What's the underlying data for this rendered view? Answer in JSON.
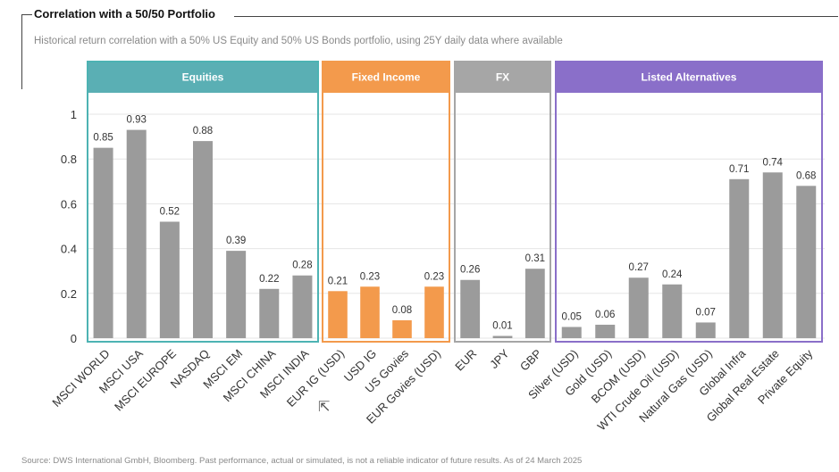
{
  "header": {
    "title": "Correlation with a 50/50 Portfolio",
    "subtitle": "Historical return correlation with a 50% US Equity and 50% US Bonds portfolio, using 25Y daily data where available"
  },
  "footer": {
    "source": "Source: DWS International GmbH, Bloomberg. Past performance, actual or simulated, is not a reliable indicator of future results. As of 24 March 2025"
  },
  "chart_data": {
    "type": "bar",
    "title": "",
    "xlabel": "",
    "ylabel": "",
    "ylim": [
      0,
      1
    ],
    "yticks": [
      "0",
      "0.2",
      "0.4",
      "0.6",
      "0.8",
      "1"
    ],
    "grid": true,
    "groups": [
      {
        "name": "Equities",
        "color": "#5aafb4",
        "border": "#4db3b3",
        "categories": [
          "MSCI WORLD",
          "MSCI USA",
          "MSCI EUROPE",
          "NASDAQ",
          "MSCI EM",
          "MSCI CHINA",
          "MSCI INDIA"
        ],
        "values": [
          0.85,
          0.93,
          0.52,
          0.88,
          0.39,
          0.22,
          0.28
        ],
        "labels": [
          "0.85",
          "0.93",
          "0.52",
          "0.88",
          "0.39",
          "0.22",
          "0.28"
        ],
        "bar_color": "#9b9b9b"
      },
      {
        "name": "Fixed Income",
        "color": "#f39a4c",
        "border": "#f39a4c",
        "categories": [
          "EUR IG (USD)",
          "USD IG",
          "US Govies",
          "EUR Govies (USD)"
        ],
        "values": [
          0.21,
          0.23,
          0.08,
          0.23
        ],
        "labels": [
          "0.21",
          "0.23",
          "0.08",
          "0.23"
        ],
        "bar_color": "#f39a4c"
      },
      {
        "name": "FX",
        "color": "#a6a6a6",
        "border": "#a6a6a6",
        "categories": [
          "EUR",
          "JPY",
          "GBP"
        ],
        "values": [
          0.26,
          0.01,
          0.31
        ],
        "labels": [
          "0.26",
          "0.01",
          "0.31"
        ],
        "bar_color": "#9b9b9b"
      },
      {
        "name": "Listed Alternatives",
        "color": "#8a6fc9",
        "border": "#8a6fc9",
        "categories": [
          "Silver (USD)",
          "Gold (USD)",
          "BCOM (USD)",
          "WTI Crude Oil (USD)",
          "Natural Gas (USD)",
          "Global Infra",
          "Global Real Estate",
          "Private Equity"
        ],
        "values": [
          0.05,
          0.06,
          0.27,
          0.24,
          0.07,
          0.71,
          0.74,
          0.68
        ],
        "labels": [
          "0.05",
          "0.06",
          "0.27",
          "0.24",
          "0.07",
          "0.71",
          "0.74",
          "0.68"
        ],
        "bar_color": "#9b9b9b"
      }
    ]
  }
}
